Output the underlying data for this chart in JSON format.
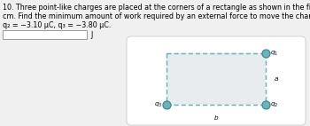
{
  "title_line1": "10. Three point-like charges are placed at the corners of a rectangle as shown in the figure, a = 38.0 cm and b = 52.0",
  "title_line2": "cm. Find the minimum amount of work required by an external force to move the charge q₁ to infinity. Let q₁ = +2.60 μC,",
  "title_line3": "q₂ = −3.10 μC, q₃ = −3.80 μC.",
  "unit_label": "J",
  "background_color": "#f0f0f0",
  "card_color": "#ffffff",
  "rect_fill": "#e8ecee",
  "dashed_color": "#6ab5bc",
  "dot_color": "#6ab5bc",
  "dot_edge_color": "#3a8a92",
  "text_fontsize": 5.8,
  "label_fontsize": 5.5,
  "charge_label_fontsize": 5.2
}
